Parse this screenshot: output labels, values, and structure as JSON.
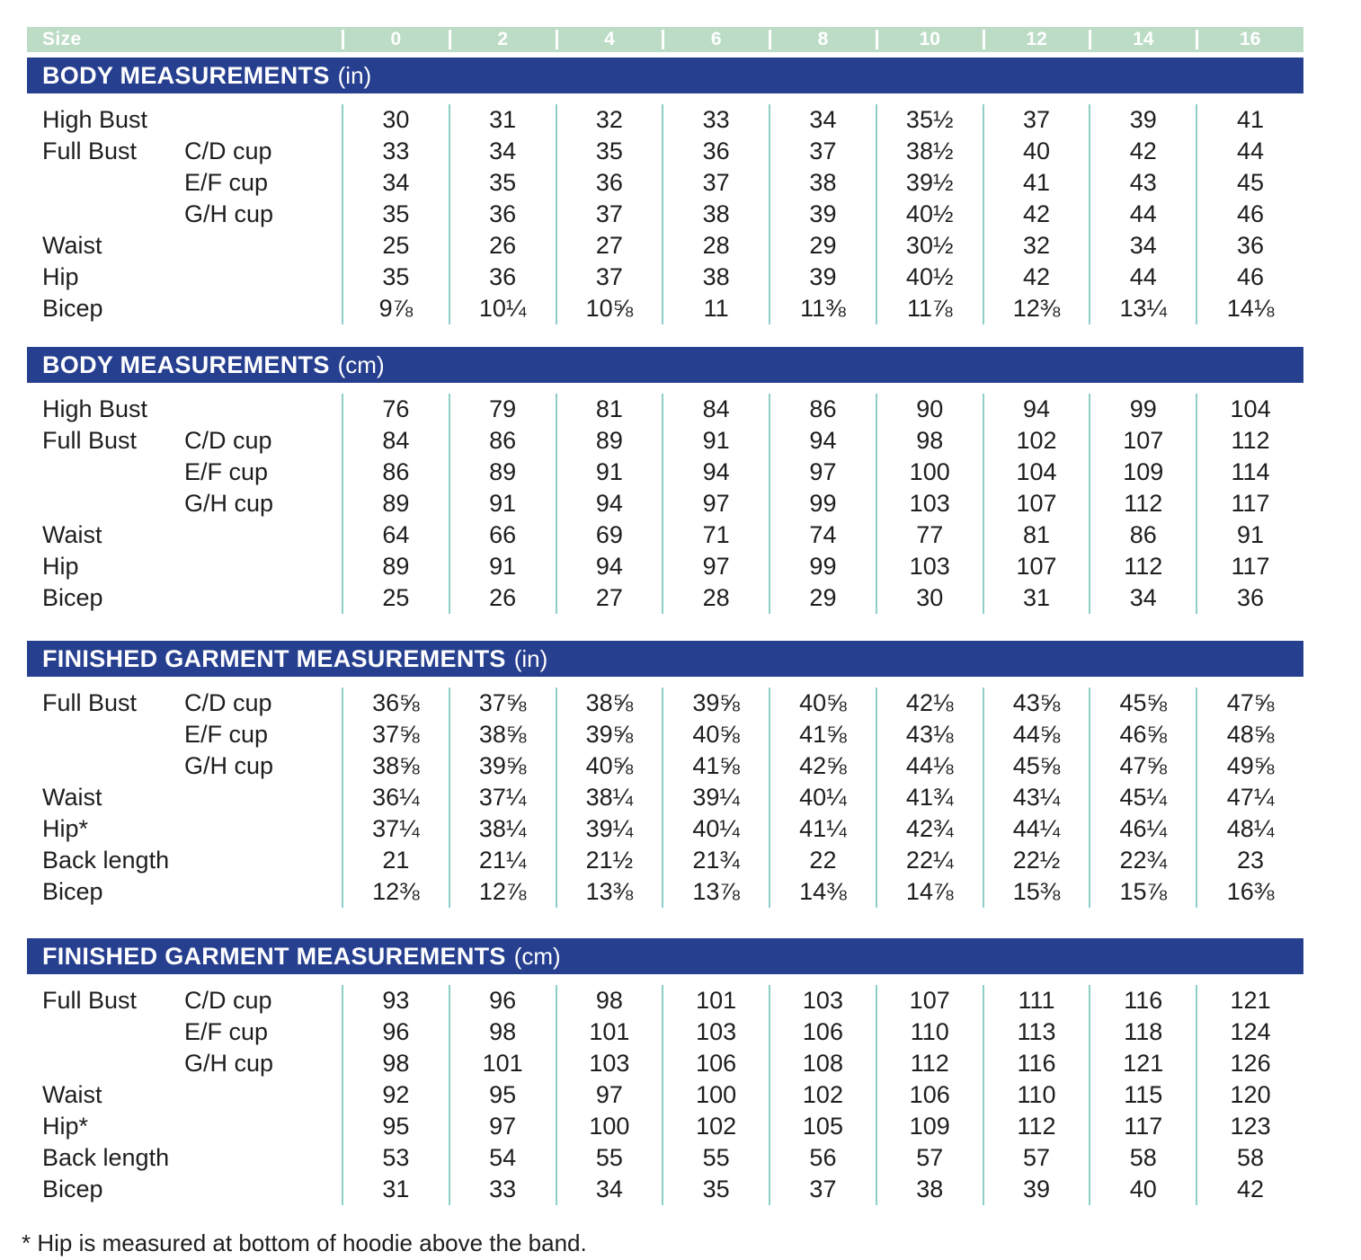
{
  "size_header": {
    "label": "Size",
    "sizes": [
      "0",
      "2",
      "4",
      "6",
      "8",
      "10",
      "12",
      "14",
      "16"
    ]
  },
  "sections": [
    {
      "title": "BODY MEASUREMENTS",
      "unit": "(in)",
      "rows": [
        {
          "label": "High Bust",
          "sublabel": "",
          "values": [
            "30",
            "31",
            "32",
            "33",
            "34",
            "35½",
            "37",
            "39",
            "41"
          ]
        },
        {
          "label": "Full Bust",
          "sublabel": "C/D cup",
          "values": [
            "33",
            "34",
            "35",
            "36",
            "37",
            "38½",
            "40",
            "42",
            "44"
          ]
        },
        {
          "label": "",
          "sublabel": "E/F cup",
          "values": [
            "34",
            "35",
            "36",
            "37",
            "38",
            "39½",
            "41",
            "43",
            "45"
          ]
        },
        {
          "label": "",
          "sublabel": "G/H cup",
          "values": [
            "35",
            "36",
            "37",
            "38",
            "39",
            "40½",
            "42",
            "44",
            "46"
          ]
        },
        {
          "label": "Waist",
          "sublabel": "",
          "values": [
            "25",
            "26",
            "27",
            "28",
            "29",
            "30½",
            "32",
            "34",
            "36"
          ]
        },
        {
          "label": "Hip",
          "sublabel": "",
          "values": [
            "35",
            "36",
            "37",
            "38",
            "39",
            "40½",
            "42",
            "44",
            "46"
          ]
        },
        {
          "label": "Bicep",
          "sublabel": "",
          "values": [
            "9⅞",
            "10¼",
            "10⅝",
            "11",
            "11⅜",
            "11⅞",
            "12⅜",
            "13¼",
            "14⅛"
          ]
        }
      ]
    },
    {
      "title": "BODY MEASUREMENTS",
      "unit": "(cm)",
      "rows": [
        {
          "label": "High Bust",
          "sublabel": "",
          "values": [
            "76",
            "79",
            "81",
            "84",
            "86",
            "90",
            "94",
            "99",
            "104"
          ]
        },
        {
          "label": "Full Bust",
          "sublabel": "C/D cup",
          "values": [
            "84",
            "86",
            "89",
            "91",
            "94",
            "98",
            "102",
            "107",
            "112"
          ]
        },
        {
          "label": "",
          "sublabel": "E/F cup",
          "values": [
            "86",
            "89",
            "91",
            "94",
            "97",
            "100",
            "104",
            "109",
            "114"
          ]
        },
        {
          "label": "",
          "sublabel": "G/H cup",
          "values": [
            "89",
            "91",
            "94",
            "97",
            "99",
            "103",
            "107",
            "112",
            "117"
          ]
        },
        {
          "label": "Waist",
          "sublabel": "",
          "values": [
            "64",
            "66",
            "69",
            "71",
            "74",
            "77",
            "81",
            "86",
            "91"
          ]
        },
        {
          "label": "Hip",
          "sublabel": "",
          "values": [
            "89",
            "91",
            "94",
            "97",
            "99",
            "103",
            "107",
            "112",
            "117"
          ]
        },
        {
          "label": "Bicep",
          "sublabel": "",
          "values": [
            "25",
            "26",
            "27",
            "28",
            "29",
            "30",
            "31",
            "34",
            "36"
          ]
        }
      ]
    },
    {
      "title": "FINISHED GARMENT MEASUREMENTS",
      "unit": "(in)",
      "rows": [
        {
          "label": "Full Bust",
          "sublabel": "C/D cup",
          "values": [
            "36⅝",
            "37⅝",
            "38⅝",
            "39⅝",
            "40⅝",
            "42⅛",
            "43⅝",
            "45⅝",
            "47⅝"
          ]
        },
        {
          "label": "",
          "sublabel": "E/F cup",
          "values": [
            "37⅝",
            "38⅝",
            "39⅝",
            "40⅝",
            "41⅝",
            "43⅛",
            "44⅝",
            "46⅝",
            "48⅝"
          ]
        },
        {
          "label": "",
          "sublabel": "G/H cup",
          "values": [
            "38⅝",
            "39⅝",
            "40⅝",
            "41⅝",
            "42⅝",
            "44⅛",
            "45⅝",
            "47⅝",
            "49⅝"
          ]
        },
        {
          "label": "Waist",
          "sublabel": "",
          "values": [
            "36¼",
            "37¼",
            "38¼",
            "39¼",
            "40¼",
            "41¾",
            "43¼",
            "45¼",
            "47¼"
          ]
        },
        {
          "label": "Hip*",
          "sublabel": "",
          "values": [
            "37¼",
            "38¼",
            "39¼",
            "40¼",
            "41¼",
            "42¾",
            "44¼",
            "46¼",
            "48¼"
          ]
        },
        {
          "label": "Back length",
          "sublabel": "",
          "values": [
            "21",
            "21¼",
            "21½",
            "21¾",
            "22",
            "22¼",
            "22½",
            "22¾",
            "23"
          ]
        },
        {
          "label": "Bicep",
          "sublabel": "",
          "values": [
            "12⅜",
            "12⅞",
            "13⅜",
            "13⅞",
            "14⅜",
            "14⅞",
            "15⅜",
            "15⅞",
            "16⅜"
          ]
        }
      ]
    },
    {
      "title": "FINISHED GARMENT MEASUREMENTS",
      "unit": "(cm)",
      "rows": [
        {
          "label": "Full Bust",
          "sublabel": "C/D cup",
          "values": [
            "93",
            "96",
            "98",
            "101",
            "103",
            "107",
            "111",
            "116",
            "121"
          ]
        },
        {
          "label": "",
          "sublabel": "E/F cup",
          "values": [
            "96",
            "98",
            "101",
            "103",
            "106",
            "110",
            "113",
            "118",
            "124"
          ]
        },
        {
          "label": "",
          "sublabel": "G/H cup",
          "values": [
            "98",
            "101",
            "103",
            "106",
            "108",
            "112",
            "116",
            "121",
            "126"
          ]
        },
        {
          "label": "Waist",
          "sublabel": "",
          "values": [
            "92",
            "95",
            "97",
            "100",
            "102",
            "106",
            "110",
            "115",
            "120"
          ]
        },
        {
          "label": "Hip*",
          "sublabel": "",
          "values": [
            "95",
            "97",
            "100",
            "102",
            "105",
            "109",
            "112",
            "117",
            "123"
          ]
        },
        {
          "label": "Back length",
          "sublabel": "",
          "values": [
            "53",
            "54",
            "55",
            "55",
            "56",
            "57",
            "57",
            "58",
            "58"
          ]
        },
        {
          "label": "Bicep",
          "sublabel": "",
          "values": [
            "31",
            "33",
            "34",
            "35",
            "37",
            "38",
            "39",
            "40",
            "42"
          ]
        }
      ]
    }
  ],
  "footnote": "* Hip is measured at bottom of hoodie above the band.",
  "colors": {
    "header_green": "#bcdcc6",
    "section_navy": "#263f8f",
    "divider_teal": "#8ccfc9"
  }
}
